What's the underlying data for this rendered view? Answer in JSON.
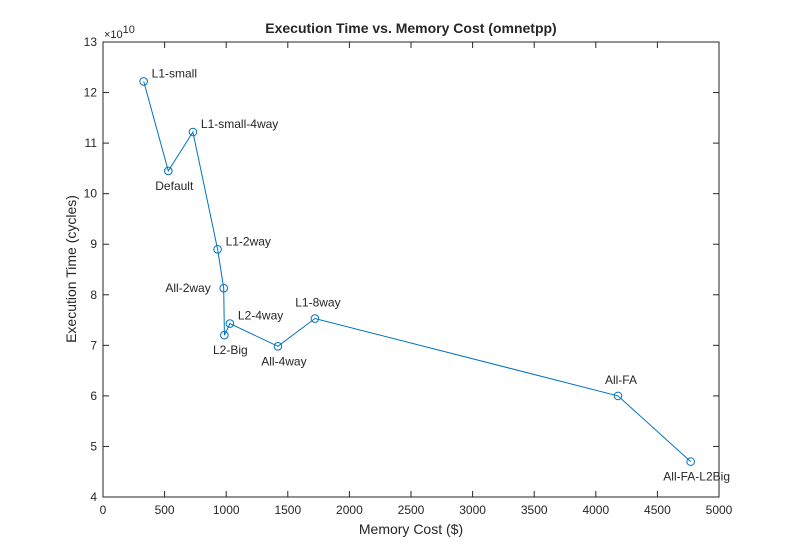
{
  "chart_data": {
    "type": "line",
    "title": "Execution Time vs. Memory Cost (omnetpp)",
    "xlabel": "Memory Cost ($)",
    "ylabel": "Execution Time (cycles)",
    "y_exponent_label": "×10",
    "y_exponent_power": "10",
    "xlim": [
      0,
      5000
    ],
    "ylim": [
      4,
      13
    ],
    "xticks": [
      0,
      500,
      1000,
      1500,
      2000,
      2500,
      3000,
      3500,
      4000,
      4500,
      5000
    ],
    "yticks": [
      4,
      5,
      6,
      7,
      8,
      9,
      10,
      11,
      12,
      13
    ],
    "grid": false,
    "line_color": "#0072BD",
    "series": [
      {
        "points": [
          {
            "label": "L1-small",
            "x": 330,
            "y": 12.22,
            "label_pos": "right-up"
          },
          {
            "label": "Default",
            "x": 530,
            "y": 10.45,
            "label_pos": "below"
          },
          {
            "label": "L1-small-4way",
            "x": 730,
            "y": 11.22,
            "label_pos": "right-up"
          },
          {
            "label": "L1-2way",
            "x": 930,
            "y": 8.9,
            "label_pos": "right-up"
          },
          {
            "label": "All-2way",
            "x": 980,
            "y": 8.13,
            "label_pos": "left"
          },
          {
            "label": "L2-Big",
            "x": 985,
            "y": 7.2,
            "label_pos": "below"
          },
          {
            "label": "L2-4way",
            "x": 1030,
            "y": 7.43,
            "label_pos": "right-up"
          },
          {
            "label": "All-4way",
            "x": 1420,
            "y": 6.98,
            "label_pos": "below"
          },
          {
            "label": "L1-8way",
            "x": 1720,
            "y": 7.53,
            "label_pos": "above"
          },
          {
            "label": "All-FA",
            "x": 4180,
            "y": 6.0,
            "label_pos": "above"
          },
          {
            "label": "All-FA-L2Big",
            "x": 4770,
            "y": 4.7,
            "label_pos": "below"
          }
        ]
      }
    ]
  }
}
